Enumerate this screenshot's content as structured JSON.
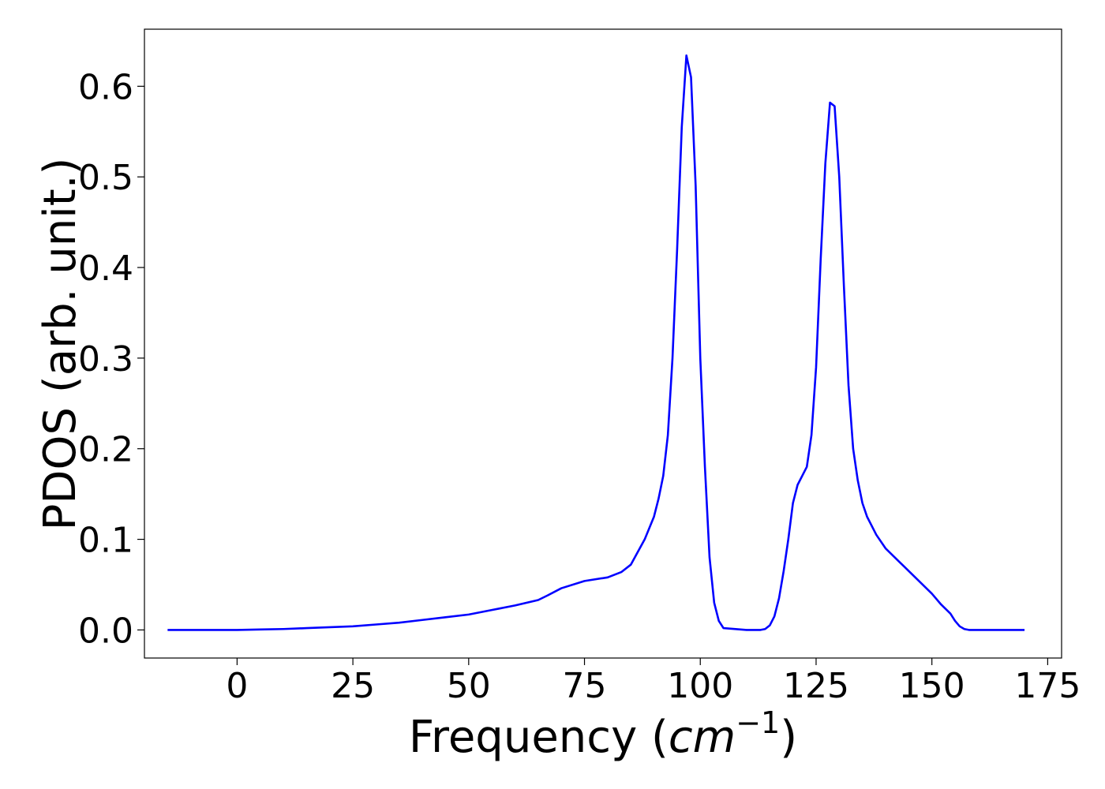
{
  "chart_data": {
    "type": "line",
    "title": "",
    "xlabel": "Frequency (",
    "xlabel_math_base": "cm",
    "xlabel_math_exp": "−1",
    "xlabel_close": ")",
    "ylabel": "PDOS (arb. unit.)",
    "xlim": [
      -20,
      178
    ],
    "ylim": [
      -0.031,
      0.663
    ],
    "xticks": [
      0,
      25,
      50,
      75,
      100,
      125,
      150,
      175
    ],
    "xtick_labels": [
      "0",
      "25",
      "50",
      "75",
      "100",
      "125",
      "150",
      "175"
    ],
    "yticks": [
      0.0,
      0.1,
      0.2,
      0.3,
      0.4,
      0.5,
      0.6
    ],
    "ytick_labels": [
      "0.0",
      "0.1",
      "0.2",
      "0.3",
      "0.4",
      "0.5",
      "0.6"
    ],
    "grid": false,
    "legend": "none",
    "series": [
      {
        "color": "#0000ff",
        "x": [
          -15,
          0,
          5,
          10,
          15,
          20,
          25,
          30,
          35,
          40,
          45,
          50,
          55,
          60,
          65,
          67,
          70,
          75,
          80,
          83,
          85,
          88,
          90,
          91,
          92,
          93,
          94,
          95,
          96,
          97,
          98,
          99,
          100,
          101,
          102,
          103,
          104,
          105,
          110,
          113,
          114,
          115,
          116,
          117,
          118,
          119,
          120,
          121,
          122,
          123,
          124,
          125,
          126,
          127,
          128,
          129,
          130,
          131,
          132,
          133,
          134,
          135,
          136,
          137,
          138,
          140,
          143,
          146,
          150,
          152,
          154,
          155,
          156,
          157,
          158,
          160,
          165,
          170
        ],
        "y": [
          0.0,
          0.0,
          0.0005,
          0.001,
          0.002,
          0.003,
          0.004,
          0.006,
          0.008,
          0.011,
          0.014,
          0.017,
          0.022,
          0.027,
          0.033,
          0.038,
          0.046,
          0.054,
          0.058,
          0.064,
          0.072,
          0.1,
          0.125,
          0.145,
          0.17,
          0.215,
          0.3,
          0.42,
          0.555,
          0.634,
          0.61,
          0.49,
          0.3,
          0.18,
          0.08,
          0.03,
          0.01,
          0.002,
          0.0,
          0.0,
          0.001,
          0.005,
          0.015,
          0.035,
          0.065,
          0.1,
          0.14,
          0.16,
          0.17,
          0.18,
          0.215,
          0.29,
          0.41,
          0.515,
          0.582,
          0.578,
          0.5,
          0.38,
          0.27,
          0.2,
          0.165,
          0.14,
          0.125,
          0.115,
          0.105,
          0.09,
          0.075,
          0.06,
          0.04,
          0.028,
          0.018,
          0.01,
          0.004,
          0.001,
          0.0,
          0.0,
          0.0,
          0.0
        ]
      }
    ]
  }
}
